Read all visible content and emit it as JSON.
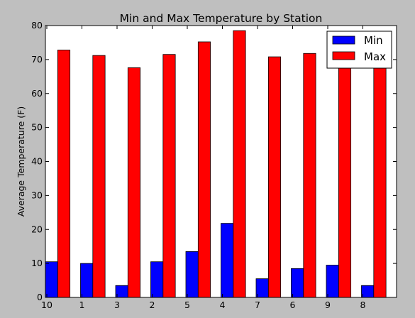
{
  "chart_data": {
    "type": "bar",
    "title": "Min and Max Temperature by Station",
    "xlabel": "",
    "ylabel": "Average Temperature (F)",
    "categories": [
      "10",
      "1",
      "3",
      "2",
      "5",
      "4",
      "7",
      "6",
      "9",
      "8"
    ],
    "series": [
      {
        "name": "Min",
        "color": "#0000ff",
        "values": [
          10.5,
          10.0,
          3.5,
          10.5,
          13.5,
          21.8,
          5.5,
          8.5,
          9.5,
          3.5
        ]
      },
      {
        "name": "Max",
        "color": "#ff0000",
        "values": [
          72.8,
          71.2,
          67.6,
          71.5,
          75.2,
          78.5,
          70.8,
          71.8,
          70.5,
          69.5
        ]
      }
    ],
    "ylim": [
      0,
      80
    ],
    "yticks": [
      0,
      10,
      20,
      30,
      40,
      50,
      60,
      70,
      80
    ],
    "grid": false,
    "legend_position": "top-right"
  }
}
